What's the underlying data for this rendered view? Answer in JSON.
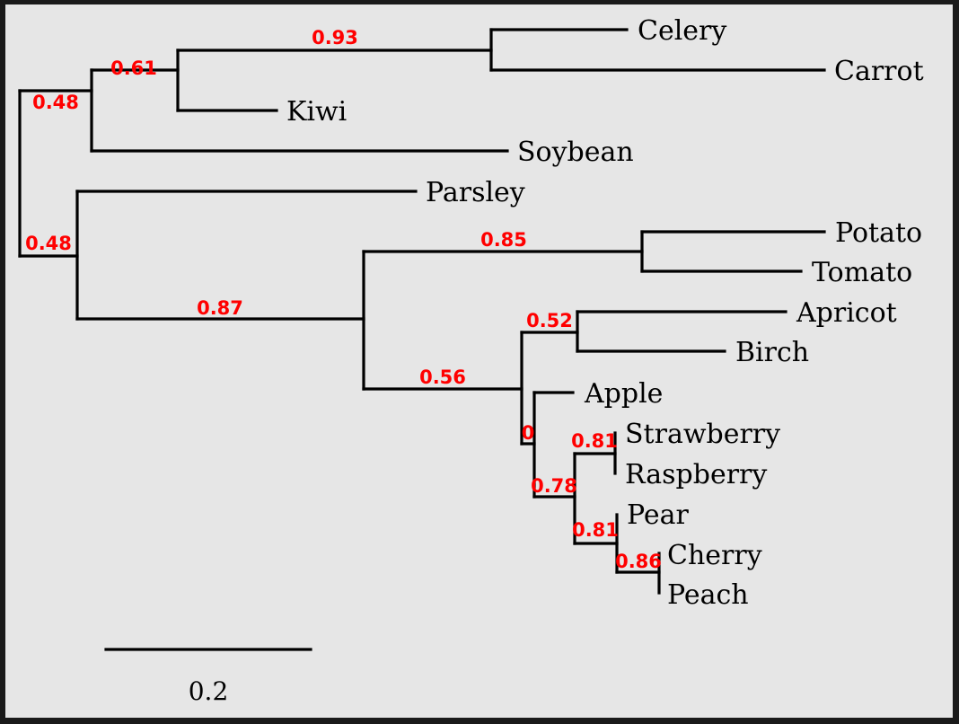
{
  "colors": {
    "frame": "#1a1a1a",
    "background": "#e6e6e6",
    "branch": "#000000",
    "leaf_text": "#000000",
    "support_text": "#ff0000"
  },
  "tree": {
    "leaves": [
      "Celery",
      "Carrot",
      "Kiwi",
      "Soybean",
      "Parsley",
      "Potato",
      "Tomato",
      "Apricot",
      "Birch",
      "Apple",
      "Strawberry",
      "Raspberry",
      "Pear",
      "Cherry",
      "Peach"
    ],
    "support_values": {
      "celery_carrot": "0.93",
      "kiwi_clade": "0.61",
      "soybean_clade": "0.48",
      "root_split": "0.48",
      "nightshade_clade": "0.85",
      "rosid_clade": "0.87",
      "apricot_birch": "0.52",
      "rosaceae_clade": "0.56",
      "apple_clade": "0",
      "berry_clade": "0.81",
      "pear_berry_clade": "0.78",
      "pear_clade": "0.81",
      "cherry_peach": "0.86"
    }
  },
  "scale_bar": {
    "label": "0.2"
  }
}
